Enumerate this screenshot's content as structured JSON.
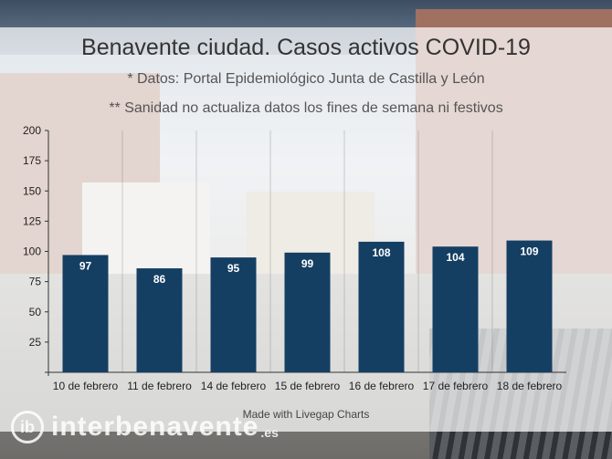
{
  "chart_data": {
    "type": "bar",
    "title": "Benavente ciudad. Casos activos COVID-19",
    "subtitle": "* Datos: Portal Epidemiológico Junta de Castilla y León",
    "subtitle2": "** Sanidad no actualiza datos los fines de semana ni festivos",
    "categories": [
      "10 de febrero",
      "11 de febrero",
      "14 de febrero",
      "15 de febrero",
      "16 de febrero",
      "17 de febrero",
      "18 de febrero"
    ],
    "values": [
      97,
      86,
      95,
      99,
      108,
      104,
      109
    ],
    "ylim": [
      0,
      200
    ],
    "yticks": [
      25,
      50,
      75,
      100,
      125,
      150,
      175,
      200
    ],
    "xlabel": "",
    "ylabel": "",
    "grid": true,
    "bar_color": "#143f63"
  },
  "footer": {
    "credit": "Made with Livegap Charts"
  },
  "watermark": {
    "logo_text": "ib",
    "name": "interbenavente",
    "suffix": ".es"
  }
}
